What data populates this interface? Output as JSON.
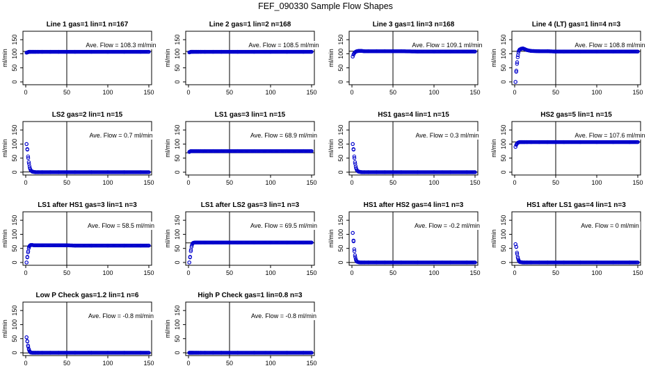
{
  "figure": {
    "title": "FEF_090330  Sample Flow Shapes"
  },
  "chart_data": [
    {
      "type": "scatter",
      "title": "Line 1 gas=1 lin=1 n=167",
      "annotation": "Ave. Flow = 108.3 ml/min",
      "mean": 108.3,
      "ylabel": "ml/min",
      "xlim": [
        0,
        150
      ],
      "ylim": [
        -10,
        180
      ],
      "xticks": [
        0,
        50,
        100,
        150
      ],
      "yticks": [
        0,
        50,
        100,
        150
      ],
      "vline_x": 50,
      "point_color": "#0000cc",
      "series": [
        {
          "name": "flow",
          "x": [
            1,
            2,
            3,
            4,
            5,
            6,
            8,
            10,
            12,
            15,
            20,
            30,
            40,
            50,
            60,
            80,
            100,
            120,
            140,
            150
          ],
          "y": [
            104,
            105,
            106,
            107,
            107,
            107,
            107,
            107,
            107,
            107,
            107,
            107,
            107,
            107,
            107,
            107,
            107,
            107,
            107,
            107
          ]
        }
      ]
    },
    {
      "type": "scatter",
      "title": "Line 2 gas=1 lin=2 n=168",
      "annotation": "Ave. Flow = 108.5 ml/min",
      "mean": 108.5,
      "ylabel": "ml/min",
      "xlim": [
        0,
        150
      ],
      "ylim": [
        -10,
        180
      ],
      "xticks": [
        0,
        50,
        100,
        150
      ],
      "yticks": [
        0,
        50,
        100,
        150
      ],
      "vline_x": 50,
      "point_color": "#0000cc",
      "series": [
        {
          "name": "flow",
          "x": [
            1,
            2,
            3,
            4,
            5,
            6,
            8,
            10,
            12,
            15,
            20,
            30,
            40,
            50,
            60,
            80,
            100,
            120,
            140,
            150
          ],
          "y": [
            105,
            106,
            107,
            107,
            107,
            107,
            107,
            107,
            107,
            107,
            107,
            107,
            107,
            107,
            107,
            107,
            107,
            107,
            107,
            107
          ]
        }
      ]
    },
    {
      "type": "scatter",
      "title": "Line 3 gas=1 lin=3 n=168",
      "annotation": "Ave. Flow = 109.1 ml/min",
      "mean": 109.1,
      "ylabel": "ml/min",
      "xlim": [
        0,
        150
      ],
      "ylim": [
        -10,
        180
      ],
      "xticks": [
        0,
        50,
        100,
        150
      ],
      "yticks": [
        0,
        50,
        100,
        150
      ],
      "vline_x": 50,
      "point_color": "#0000cc",
      "series": [
        {
          "name": "flow",
          "x": [
            1,
            2,
            3,
            4,
            5,
            6,
            8,
            10,
            12,
            15,
            20,
            30,
            40,
            50,
            60,
            80,
            100,
            120,
            140,
            150
          ],
          "y": [
            90,
            98,
            103,
            106,
            108,
            109,
            110,
            110,
            110,
            109,
            109,
            109,
            109,
            109,
            109,
            108,
            108,
            108,
            108,
            108
          ]
        }
      ]
    },
    {
      "type": "scatter",
      "title": "Line 4 (LT) gas=1 lin=4 n=3",
      "annotation": "Ave. Flow = 108.8 ml/min",
      "mean": 108.8,
      "ylabel": "ml/min",
      "xlim": [
        0,
        150
      ],
      "ylim": [
        -10,
        180
      ],
      "xticks": [
        0,
        50,
        100,
        150
      ],
      "yticks": [
        0,
        50,
        100,
        150
      ],
      "vline_x": 50,
      "point_color": "#0000cc",
      "series": [
        {
          "name": "flow",
          "x": [
            1,
            2,
            3,
            4,
            5,
            6,
            8,
            10,
            12,
            15,
            20,
            30,
            40,
            50,
            60,
            80,
            100,
            120,
            140,
            150
          ],
          "y": [
            0,
            40,
            70,
            95,
            110,
            115,
            118,
            119,
            117,
            113,
            110,
            109,
            109,
            108,
            108,
            108,
            108,
            108,
            108,
            108
          ]
        }
      ]
    },
    {
      "type": "scatter",
      "title": "LS2 gas=2 lin=1 n=15",
      "annotation": "Ave. Flow = 0.7 ml/min",
      "mean": 0.7,
      "ylabel": "ml/min",
      "xlim": [
        0,
        150
      ],
      "ylim": [
        -10,
        180
      ],
      "xticks": [
        0,
        50,
        100,
        150
      ],
      "yticks": [
        0,
        50,
        100,
        150
      ],
      "vline_x": 50,
      "point_color": "#0000cc",
      "series": [
        {
          "name": "flow",
          "x": [
            1,
            2,
            3,
            4,
            5,
            6,
            8,
            10,
            12,
            15,
            20,
            30,
            40,
            50,
            60,
            80,
            100,
            120,
            140,
            150
          ],
          "y": [
            100,
            80,
            50,
            30,
            15,
            7,
            2,
            1,
            0,
            0,
            0,
            0,
            0,
            0,
            0,
            0,
            0,
            0,
            0,
            0
          ]
        }
      ]
    },
    {
      "type": "scatter",
      "title": "LS1 gas=3 lin=1 n=15",
      "annotation": "Ave. Flow = 68.9 ml/min",
      "mean": 68.9,
      "ylabel": "ml/min",
      "xlim": [
        0,
        150
      ],
      "ylim": [
        -10,
        180
      ],
      "xticks": [
        0,
        50,
        100,
        150
      ],
      "yticks": [
        0,
        50,
        100,
        150
      ],
      "vline_x": 50,
      "point_color": "#0000cc",
      "series": [
        {
          "name": "flow",
          "x": [
            1,
            2,
            3,
            4,
            5,
            6,
            8,
            10,
            12,
            15,
            20,
            30,
            40,
            50,
            60,
            80,
            100,
            120,
            140,
            150
          ],
          "y": [
            72,
            74,
            75,
            75,
            75,
            75,
            75,
            75,
            75,
            75,
            75,
            75,
            75,
            75,
            75,
            75,
            75,
            75,
            75,
            75
          ]
        }
      ]
    },
    {
      "type": "scatter",
      "title": "HS1 gas=4 lin=1 n=15",
      "annotation": "Ave. Flow = 0.3 ml/min",
      "mean": 0.3,
      "ylabel": "ml/min",
      "xlim": [
        0,
        150
      ],
      "ylim": [
        -10,
        180
      ],
      "xticks": [
        0,
        50,
        100,
        150
      ],
      "yticks": [
        0,
        50,
        100,
        150
      ],
      "vline_x": 50,
      "point_color": "#0000cc",
      "series": [
        {
          "name": "flow",
          "x": [
            1,
            2,
            3,
            4,
            5,
            6,
            8,
            10,
            12,
            15,
            20,
            30,
            40,
            50,
            60,
            80,
            100,
            120,
            140,
            150
          ],
          "y": [
            100,
            80,
            50,
            30,
            15,
            7,
            2,
            1,
            0,
            0,
            0,
            0,
            0,
            0,
            0,
            0,
            0,
            0,
            0,
            0
          ]
        }
      ]
    },
    {
      "type": "scatter",
      "title": "HS2 gas=5 lin=1 n=15",
      "annotation": "Ave. Flow = 107.6 ml/min",
      "mean": 107.6,
      "ylabel": "ml/min",
      "xlim": [
        0,
        150
      ],
      "ylim": [
        -10,
        180
      ],
      "xticks": [
        0,
        50,
        100,
        150
      ],
      "yticks": [
        0,
        50,
        100,
        150
      ],
      "vline_x": 50,
      "point_color": "#0000cc",
      "series": [
        {
          "name": "flow",
          "x": [
            1,
            2,
            3,
            4,
            5,
            6,
            8,
            10,
            12,
            15,
            20,
            30,
            40,
            50,
            60,
            80,
            100,
            120,
            140,
            150
          ],
          "y": [
            90,
            98,
            102,
            105,
            106,
            107,
            107,
            107,
            107,
            107,
            107,
            107,
            107,
            107,
            107,
            107,
            107,
            107,
            107,
            107
          ]
        }
      ]
    },
    {
      "type": "scatter",
      "title": "LS1 after HS1 gas=3 lin=1 n=3",
      "annotation": "Ave. Flow = 58.5 ml/min",
      "mean": 58.5,
      "ylabel": "ml/min",
      "xlim": [
        0,
        150
      ],
      "ylim": [
        -10,
        180
      ],
      "xticks": [
        0,
        50,
        100,
        150
      ],
      "yticks": [
        0,
        50,
        100,
        150
      ],
      "vline_x": 50,
      "point_color": "#0000cc",
      "series": [
        {
          "name": "flow",
          "x": [
            1,
            2,
            3,
            4,
            5,
            6,
            8,
            10,
            12,
            15,
            20,
            30,
            40,
            50,
            60,
            80,
            100,
            120,
            140,
            150
          ],
          "y": [
            0,
            20,
            40,
            55,
            60,
            62,
            62,
            61,
            61,
            61,
            61,
            61,
            61,
            61,
            60,
            60,
            60,
            60,
            60,
            60
          ]
        }
      ]
    },
    {
      "type": "scatter",
      "title": "LS1 after LS2 gas=3 lin=1 n=3",
      "annotation": "Ave. Flow = 69.5 ml/min",
      "mean": 69.5,
      "ylabel": "ml/min",
      "xlim": [
        0,
        150
      ],
      "ylim": [
        -10,
        180
      ],
      "xticks": [
        0,
        50,
        100,
        150
      ],
      "yticks": [
        0,
        50,
        100,
        150
      ],
      "vline_x": 50,
      "point_color": "#0000cc",
      "series": [
        {
          "name": "flow",
          "x": [
            1,
            2,
            3,
            4,
            5,
            6,
            8,
            10,
            12,
            15,
            20,
            30,
            40,
            50,
            60,
            80,
            100,
            120,
            140,
            150
          ],
          "y": [
            0,
            20,
            45,
            60,
            68,
            70,
            71,
            71,
            71,
            71,
            71,
            71,
            71,
            71,
            71,
            71,
            71,
            71,
            71,
            71
          ]
        }
      ]
    },
    {
      "type": "scatter",
      "title": "HS1 after HS2 gas=4 lin=1 n=3",
      "annotation": "Ave. Flow = -0.2 ml/min",
      "mean": -0.2,
      "ylabel": "ml/min",
      "xlim": [
        0,
        150
      ],
      "ylim": [
        -10,
        180
      ],
      "xticks": [
        0,
        50,
        100,
        150
      ],
      "yticks": [
        0,
        50,
        100,
        150
      ],
      "vline_x": 50,
      "point_color": "#0000cc",
      "series": [
        {
          "name": "flow",
          "x": [
            1,
            2,
            3,
            4,
            5,
            6,
            8,
            10,
            12,
            15,
            20,
            30,
            40,
            50,
            60,
            80,
            100,
            120,
            140,
            150
          ],
          "y": [
            105,
            75,
            40,
            20,
            8,
            3,
            1,
            0,
            0,
            0,
            0,
            0,
            0,
            0,
            0,
            0,
            0,
            0,
            0,
            0
          ]
        }
      ]
    },
    {
      "type": "scatter",
      "title": "HS1 after LS1 gas=4 lin=1 n=3",
      "annotation": "Ave. Flow = 0 ml/min",
      "mean": 0,
      "ylabel": "ml/min",
      "xlim": [
        0,
        150
      ],
      "ylim": [
        -10,
        180
      ],
      "xticks": [
        0,
        50,
        100,
        150
      ],
      "yticks": [
        0,
        50,
        100,
        150
      ],
      "vline_x": 50,
      "point_color": "#0000cc",
      "series": [
        {
          "name": "flow",
          "x": [
            1,
            2,
            3,
            4,
            5,
            6,
            8,
            10,
            12,
            15,
            20,
            30,
            40,
            50,
            60,
            80,
            100,
            120,
            140,
            150
          ],
          "y": [
            65,
            55,
            30,
            15,
            6,
            2,
            1,
            0,
            0,
            0,
            0,
            0,
            0,
            0,
            0,
            0,
            0,
            0,
            0,
            0
          ]
        }
      ]
    },
    {
      "type": "scatter",
      "title": "Low P Check gas=1.2 lin=1 n=6",
      "annotation": "Ave. Flow = -0.8 ml/min",
      "mean": -0.8,
      "ylabel": "ml/min",
      "xlim": [
        0,
        150
      ],
      "ylim": [
        -10,
        180
      ],
      "xticks": [
        0,
        50,
        100,
        150
      ],
      "yticks": [
        0,
        50,
        100,
        150
      ],
      "vline_x": 50,
      "point_color": "#0000cc",
      "series": [
        {
          "name": "flow",
          "x": [
            1,
            2,
            3,
            4,
            5,
            6,
            8,
            10,
            12,
            15,
            20,
            30,
            40,
            50,
            60,
            80,
            100,
            120,
            140,
            150
          ],
          "y": [
            55,
            40,
            22,
            10,
            4,
            1,
            0,
            0,
            0,
            0,
            0,
            0,
            0,
            0,
            0,
            0,
            0,
            0,
            0,
            0
          ]
        }
      ]
    },
    {
      "type": "scatter",
      "title": "High P Check gas=1 lin=0.8 n=3",
      "annotation": "Ave. Flow = -0.8 ml/min",
      "mean": -0.8,
      "ylabel": "ml/min",
      "xlim": [
        0,
        150
      ],
      "ylim": [
        -10,
        180
      ],
      "xticks": [
        0,
        50,
        100,
        150
      ],
      "yticks": [
        0,
        50,
        100,
        150
      ],
      "vline_x": 50,
      "point_color": "#0000cc",
      "series": [
        {
          "name": "flow",
          "x": [
            1,
            2,
            3,
            4,
            5,
            6,
            8,
            10,
            12,
            15,
            20,
            30,
            40,
            50,
            60,
            80,
            100,
            120,
            140,
            150
          ],
          "y": [
            0,
            0,
            0,
            0,
            0,
            0,
            0,
            0,
            0,
            0,
            0,
            0,
            0,
            0,
            0,
            0,
            0,
            0,
            0,
            0
          ]
        }
      ]
    }
  ]
}
